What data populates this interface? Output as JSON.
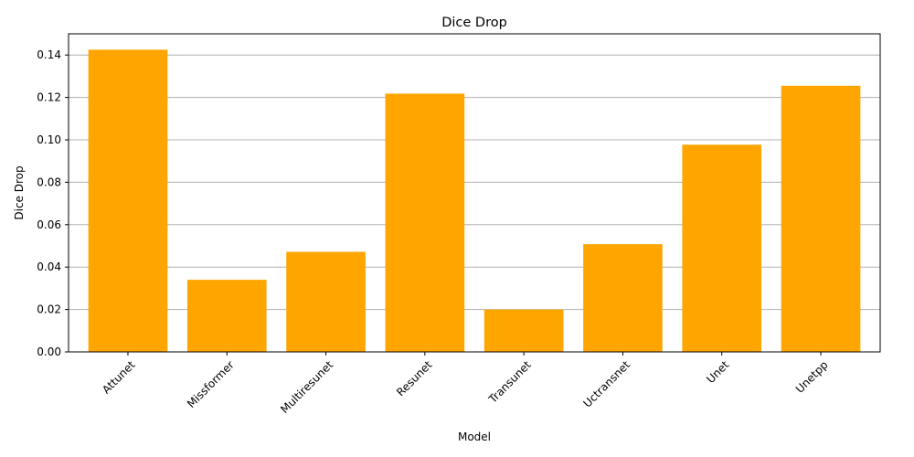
{
  "chart_data": {
    "type": "bar",
    "title": "Dice Drop",
    "xlabel": "Model",
    "ylabel": "Dice Drop",
    "categories": [
      "Attunet",
      "Missformer",
      "Multiresunet",
      "Resunet",
      "Transunet",
      "Uctransnet",
      "Unet",
      "Unetpp"
    ],
    "values": [
      0.1425,
      0.034,
      0.0472,
      0.1218,
      0.02,
      0.0508,
      0.0977,
      0.1255
    ],
    "ylim": [
      0,
      0.15
    ],
    "yticks": [
      0.0,
      0.02,
      0.04,
      0.06,
      0.08,
      0.1,
      0.12,
      0.14
    ],
    "ytick_labels": [
      "0.00",
      "0.02",
      "0.04",
      "0.06",
      "0.08",
      "0.10",
      "0.12",
      "0.14"
    ],
    "grid": "y-major",
    "bar_color": "#ffa500",
    "grid_color": "#b0b0b0"
  }
}
